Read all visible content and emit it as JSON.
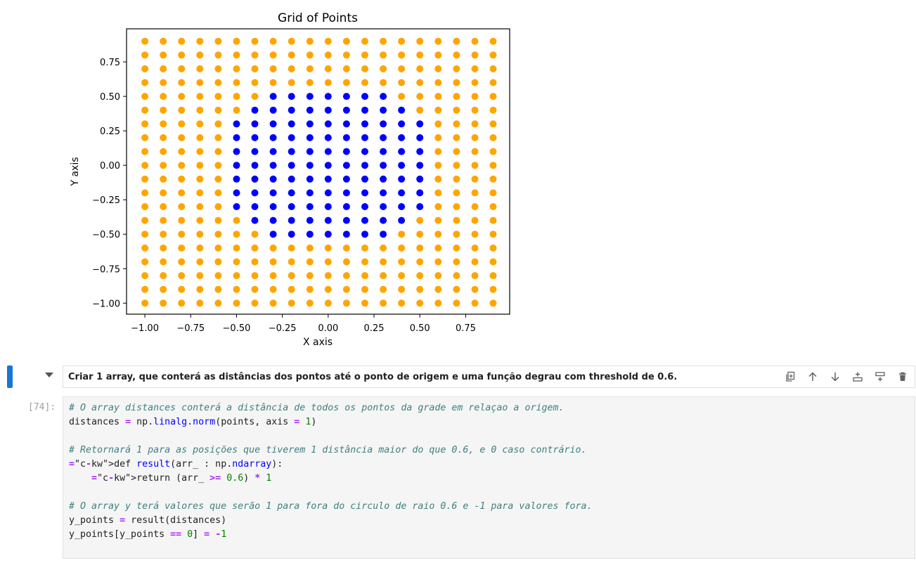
{
  "chart_data": {
    "type": "scatter",
    "title": "Grid of Points",
    "xlabel": "X axis",
    "ylabel": "Y axis",
    "xlim": [
      -1.1,
      0.99
    ],
    "ylim": [
      -1.08,
      0.99
    ],
    "x_ticks": [
      -1.0,
      -0.75,
      -0.5,
      -0.25,
      0.0,
      0.25,
      0.5,
      0.75
    ],
    "x_tick_labels": [
      "−1.00",
      "−0.75",
      "−0.50",
      "−0.25",
      "0.00",
      "0.25",
      "0.50",
      "0.75"
    ],
    "y_ticks": [
      -1.0,
      -0.75,
      -0.5,
      -0.25,
      0.0,
      0.25,
      0.5,
      0.75
    ],
    "y_tick_labels": [
      "−1.00",
      "−0.75",
      "−0.50",
      "−0.25",
      "0.00",
      "0.25",
      "0.50",
      "0.75"
    ],
    "grid": false,
    "x_grid": {
      "start": -1.0,
      "stop": 0.9,
      "step": 0.1
    },
    "y_grid": {
      "start": -1.0,
      "stop": 0.9,
      "step": 0.1
    },
    "series": [
      {
        "color": "#ffa500",
        "rule": "distance from origin >= 0.6"
      },
      {
        "color": "#0000ff",
        "rule": "distance from origin < 0.6"
      }
    ],
    "threshold": 0.6
  },
  "markdown_cell": {
    "text": "Criar 1 array, que conterá as distâncias dos pontos até o ponto de origem e uma função degrau com threshold de 0.6.",
    "toolbar_icons": [
      "copy-icon",
      "arrow-up-icon",
      "arrow-down-icon",
      "insert-above-icon",
      "insert-below-icon",
      "delete-icon"
    ]
  },
  "code_cell": {
    "prompt": "[74]:",
    "lines": [
      "# O array distances conterá a distância de todos os pontos da grade em relaçao a origem.",
      "distances = np.linalg.norm(points, axis = 1)",
      "",
      "# Retornará 1 para as posições que tiverem 1 distância maior do que 0.6, e 0 caso contrário.",
      "def result(arr_ : np.ndarray):",
      "    return (arr_ >= 0.6) * 1",
      "",
      "# O array y terá valores que serão 1 para fora do circulo de raio 0.6 e -1 para valores fora.",
      "y_points = result(distances)",
      "y_points[y_points == 0] = -1"
    ]
  },
  "colors": {
    "accent": "#1976d2",
    "orange": "#ffa500",
    "blue": "#0000ff"
  }
}
